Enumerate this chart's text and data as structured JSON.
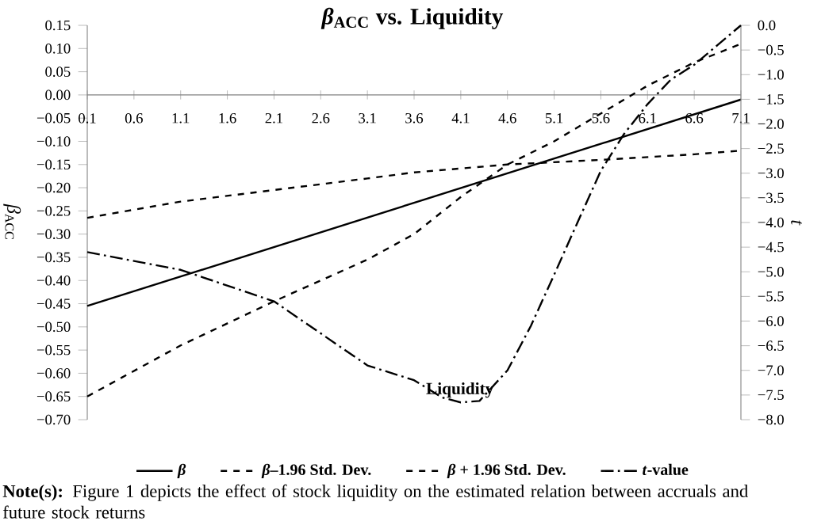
{
  "chart_data": {
    "type": "line",
    "title": "*β*$_{ACC}$ vs. Liquidity",
    "xlabel": "Liquidity",
    "ylabel": "*β*$_{ACC}$",
    "y2label": "*t*",
    "x": [
      0.1,
      1.1,
      2.1,
      3.1,
      3.6,
      4.1,
      4.6,
      5.1,
      5.6,
      6.1,
      6.6,
      7.1
    ],
    "series": [
      {
        "name": "*β*",
        "color": "#000000",
        "line_style": "solid",
        "x": [
          0.1,
          7.1
        ],
        "values": [
          -0.455,
          -0.01
        ]
      },
      {
        "name": "*β*–1.96 Std. Dev.",
        "color": "#000000",
        "line_style": "dashed",
        "values": [
          -0.65,
          -0.54,
          -0.445,
          -0.355,
          -0.3,
          -0.22,
          -0.15,
          -0.1,
          -0.04,
          0.02,
          0.07,
          0.11
        ]
      },
      {
        "name": "*β* + 1.96 Std. Dev.",
        "color": "#000000",
        "line_style": "dashed",
        "x": [
          0.1,
          1.1,
          2.1,
          3.1,
          3.6,
          4.6,
          5.6,
          6.6,
          7.1
        ],
        "values": [
          -0.265,
          -0.23,
          -0.205,
          -0.18,
          -0.167,
          -0.15,
          -0.14,
          -0.128,
          -0.12
        ]
      },
      {
        "name": "*t*-value",
        "color": "#000000",
        "line_style": "dashdot",
        "axis": "y2",
        "x": [
          0.1,
          1.1,
          2.1,
          3.1,
          3.6,
          3.9,
          4.1,
          4.3,
          4.6,
          4.85,
          5.1,
          5.35,
          5.6,
          5.85,
          6.1,
          6.35,
          6.6,
          6.85,
          7.1
        ],
        "values": [
          -4.6,
          -4.96,
          -5.6,
          -6.9,
          -7.2,
          -7.55,
          -7.65,
          -7.62,
          -7.0,
          -6.1,
          -5.06,
          -4.0,
          -2.95,
          -2.2,
          -1.6,
          -1.1,
          -0.8,
          -0.4,
          0.0
        ]
      }
    ],
    "xlim": [
      0.1,
      7.1
    ],
    "xticks": [
      0.1,
      0.6,
      1.1,
      1.6,
      2.1,
      2.6,
      3.1,
      3.6,
      4.1,
      4.6,
      5.1,
      5.6,
      6.1,
      6.6,
      7.1
    ],
    "ylim": [
      -0.7,
      0.15
    ],
    "yticks": [
      {
        "value": 0.15,
        "label": "0.15"
      },
      {
        "value": 0.1,
        "label": "0.10"
      },
      {
        "value": 0.05,
        "label": "0.05"
      },
      {
        "value": 0,
        "label": "0.00"
      },
      {
        "value": -0.05,
        "label": "−0.05"
      },
      {
        "value": -0.1,
        "label": "−0.10"
      },
      {
        "value": -0.15,
        "label": "−0.15"
      },
      {
        "value": -0.2,
        "label": "−0.20"
      },
      {
        "value": -0.25,
        "label": "−0.25"
      },
      {
        "value": -0.3,
        "label": "−0.30"
      },
      {
        "value": -0.35,
        "label": "−0.35"
      },
      {
        "value": -0.4,
        "label": "−0.40"
      },
      {
        "value": -0.45,
        "label": "−0.45"
      },
      {
        "value": -0.5,
        "label": "−0.50"
      },
      {
        "value": -0.55,
        "label": "−0.55"
      },
      {
        "value": -0.6,
        "label": "−0.60"
      },
      {
        "value": -0.65,
        "label": "−0.65"
      },
      {
        "value": -0.7,
        "label": "−0.70"
      }
    ],
    "y2lim": [
      -8,
      0
    ],
    "y2ticks": [
      {
        "value": 0,
        "label": "0.0"
      },
      {
        "value": -0.5,
        "label": "−0.5"
      },
      {
        "value": -1,
        "label": "−1.0"
      },
      {
        "value": -1.5,
        "label": "−1.5"
      },
      {
        "value": -2,
        "label": "−2.0"
      },
      {
        "value": -2.5,
        "label": "−2.5"
      },
      {
        "value": -3,
        "label": "−3.0"
      },
      {
        "value": -3.5,
        "label": "−3.5"
      },
      {
        "value": -4,
        "label": "−4.0"
      },
      {
        "value": -4.5,
        "label": "−4.5"
      },
      {
        "value": -5,
        "label": "−5.0"
      },
      {
        "value": -5.5,
        "label": "−5.5"
      },
      {
        "value": -6,
        "label": "−6.0"
      },
      {
        "value": -6.5,
        "label": "−6.5"
      },
      {
        "value": -7,
        "label": "−7.0"
      },
      {
        "value": -7.5,
        "label": "−7.5"
      },
      {
        "value": -8,
        "label": "−8.0"
      }
    ],
    "grid": false,
    "legend": "bottom",
    "annotations": [
      "**Note(s):** Figure 1 depicts the effect of stock liquidity on the estimated relation between accruals and future stock returns"
    ]
  }
}
